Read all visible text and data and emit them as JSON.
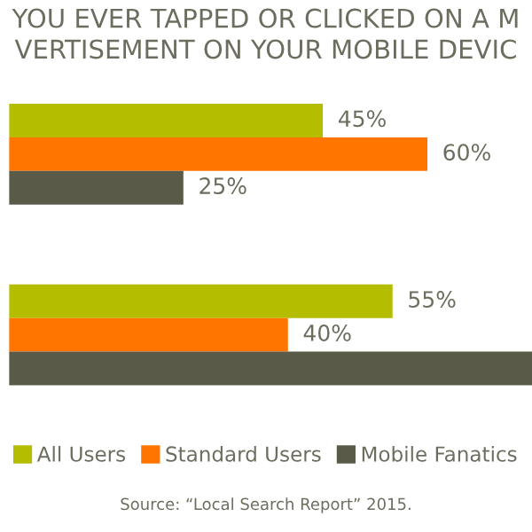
{
  "chart_data": {
    "type": "bar",
    "orientation": "horizontal",
    "title": "YOU EVER TAPPED OR CLICKED ON A M\nVERTISEMENT ON YOUR MOBILE DEVIC",
    "categories": [
      null,
      null
    ],
    "series": [
      {
        "name": "All Users",
        "color": "#b5bd00",
        "values": [
          45,
          55
        ],
        "value_labels": [
          "45%",
          "55%"
        ]
      },
      {
        "name": "Standard Users",
        "color": "#ff7500",
        "values": [
          60,
          40
        ],
        "value_labels": [
          "60%",
          "40%"
        ]
      },
      {
        "name": "Mobile Fanatics",
        "color": "#5a5a48",
        "values": [
          25,
          75
        ],
        "value_labels": [
          "25%",
          null
        ]
      }
    ],
    "xlim": [
      0,
      75
    ],
    "legend": "bottom",
    "grid": false,
    "annotations": [
      "Source: “Local Search Report” 2015."
    ]
  }
}
